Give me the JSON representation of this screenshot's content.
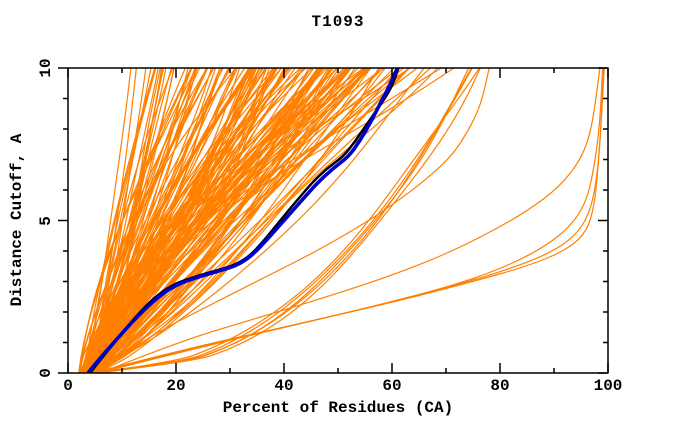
{
  "figure": {
    "background": "#ffffff"
  },
  "chart_data": {
    "type": "line",
    "title": "T1093",
    "xlabel": "Percent of Residues (CA)",
    "ylabel": "Distance Cutoff, A",
    "xlim": [
      0,
      100
    ],
    "ylim": [
      0,
      10
    ],
    "grid": false,
    "legend": "none",
    "frame": true,
    "xticks": {
      "major": [
        0,
        20,
        40,
        60,
        80,
        100
      ],
      "labels": [
        "0",
        "20",
        "40",
        "60",
        "80",
        "100"
      ],
      "minor_step": 10
    },
    "yticks": {
      "major": [
        0,
        5,
        10
      ],
      "labels": [
        "0",
        "5",
        "10"
      ],
      "minor_step": 1
    },
    "colors": {
      "models": "#FF8000",
      "best_model": "#0000CC",
      "reference_model": "#000000",
      "axis": "#000000",
      "background": "#ffffff"
    },
    "series": [
      {
        "name": "predicted-models-fan",
        "role": "server model curves (percent of CA residues under each distance cutoff)",
        "type": "generated",
        "color_key": "models",
        "linewidth": 1.2,
        "count": 170,
        "seed": 11,
        "start_pct_range": [
          2,
          5.5
        ],
        "top_pct_range": [
          8,
          76
        ],
        "exponent_range": [
          0.7,
          1.5
        ],
        "wiggle": 0.055
      },
      {
        "name": "shallow-models",
        "role": "lower sparse model curves below the main bundle",
        "type": "generated",
        "color_key": "models",
        "linewidth": 1.2,
        "count": 5,
        "seed": 5,
        "start_pct_range": [
          3.5,
          7
        ],
        "top_pct_range": [
          70,
          80
        ],
        "exponent_range": [
          0.38,
          0.5
        ],
        "wiggle": 0.02
      },
      {
        "name": "full-coverage-models",
        "role": "models reaching ~100% of residues at high cutoff (right-side elbow curves)",
        "type": "points",
        "color_key": "models",
        "linewidth": 1.2,
        "curves": [
          [
            [
              5,
              0
            ],
            [
              25,
              0.9
            ],
            [
              45,
              1.7
            ],
            [
              62,
              2.4
            ],
            [
              75,
              3.0
            ],
            [
              85,
              3.5
            ],
            [
              92,
              4.0
            ],
            [
              96,
              4.6
            ],
            [
              97.5,
              5.5
            ],
            [
              98.3,
              7.0
            ],
            [
              98.8,
              8.5
            ],
            [
              99.2,
              10
            ]
          ],
          [
            [
              5.5,
              0
            ],
            [
              28,
              1.0
            ],
            [
              50,
              1.9
            ],
            [
              68,
              2.7
            ],
            [
              80,
              3.3
            ],
            [
              89,
              3.9
            ],
            [
              94,
              4.5
            ],
            [
              96.5,
              5.2
            ],
            [
              97.8,
              6.2
            ],
            [
              98.5,
              7.5
            ],
            [
              99,
              9.0
            ],
            [
              99.3,
              10
            ]
          ],
          [
            [
              4.5,
              0
            ],
            [
              22,
              0.8
            ],
            [
              40,
              1.5
            ],
            [
              57,
              2.2
            ],
            [
              70,
              2.8
            ],
            [
              80,
              3.4
            ],
            [
              88,
              4.1
            ],
            [
              93,
              4.8
            ],
            [
              96,
              5.6
            ],
            [
              97.5,
              6.8
            ],
            [
              98.5,
              8.2
            ],
            [
              99,
              10
            ]
          ],
          [
            [
              6,
              0
            ],
            [
              20,
              1.0
            ],
            [
              35,
              1.8
            ],
            [
              48,
              2.5
            ],
            [
              60,
              3.2
            ],
            [
              70,
              3.9
            ],
            [
              78,
              4.6
            ],
            [
              85,
              5.3
            ],
            [
              91,
              6.1
            ],
            [
              95,
              7.0
            ],
            [
              97,
              8.0
            ],
            [
              98.5,
              10
            ]
          ],
          [
            [
              5,
              0
            ],
            [
              15,
              1.2
            ],
            [
              26,
              2.2
            ],
            [
              36,
              3.1
            ],
            [
              45,
              3.9
            ],
            [
              53,
              4.7
            ],
            [
              60,
              5.5
            ],
            [
              66,
              6.3
            ],
            [
              71,
              7.1
            ],
            [
              74,
              7.9
            ],
            [
              76.5,
              8.8
            ],
            [
              78,
              10
            ]
          ]
        ]
      },
      {
        "name": "reference-model",
        "role": "black highlighted curve",
        "type": "points",
        "color_key": "reference_model",
        "linewidth": 2.5,
        "curves": [
          [
            [
              4.1,
              0
            ],
            [
              6.3,
              0.5
            ],
            [
              9.1,
              1.1
            ],
            [
              11.8,
              1.7
            ],
            [
              15.5,
              2.4
            ],
            [
              19.3,
              2.9
            ],
            [
              24.2,
              3.2
            ],
            [
              29.3,
              3.45
            ],
            [
              31.5,
              3.6
            ],
            [
              33.7,
              3.85
            ],
            [
              36.1,
              4.3
            ],
            [
              38.4,
              4.8
            ],
            [
              40.7,
              5.3
            ],
            [
              43.1,
              5.8
            ],
            [
              45,
              6.2
            ],
            [
              47.9,
              6.7
            ],
            [
              51,
              7.1
            ],
            [
              53.2,
              7.6
            ],
            [
              55.5,
              8.2
            ],
            [
              58.3,
              8.9
            ],
            [
              60,
              9.4
            ],
            [
              61.2,
              10
            ]
          ]
        ]
      },
      {
        "name": "best-model",
        "role": "thick blue highlighted curve",
        "type": "points",
        "color_key": "best_model",
        "linewidth": 3.6,
        "curves": [
          [
            [
              3.7,
              0
            ],
            [
              6,
              0.5
            ],
            [
              9,
              1.1
            ],
            [
              12,
              1.7
            ],
            [
              16,
              2.4
            ],
            [
              20,
              2.9
            ],
            [
              25,
              3.2
            ],
            [
              30,
              3.45
            ],
            [
              32,
              3.6
            ],
            [
              34,
              3.85
            ],
            [
              36.5,
              4.3
            ],
            [
              39,
              4.8
            ],
            [
              41.5,
              5.3
            ],
            [
              44,
              5.8
            ],
            [
              46,
              6.2
            ],
            [
              49,
              6.7
            ],
            [
              52,
              7.1
            ],
            [
              54,
              7.6
            ],
            [
              56,
              8.2
            ],
            [
              58,
              8.9
            ],
            [
              59.5,
              9.4
            ],
            [
              61,
              10
            ]
          ]
        ]
      }
    ]
  }
}
